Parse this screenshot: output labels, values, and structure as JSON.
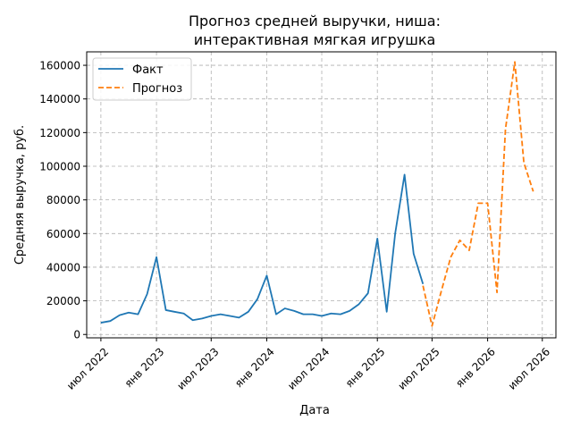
{
  "chart_data": {
    "type": "line",
    "title_lines": [
      "Прогноз средней выручки, ниша:",
      "интерактивная мягкая игрушка"
    ],
    "xlabel": "Дата",
    "ylabel": "Средняя выручка, руб.",
    "xlim": [
      "2022-05-15",
      "2026-08-15"
    ],
    "ylim": [
      -2000,
      168000
    ],
    "x_ticks": [
      {
        "date": "2022-07-01",
        "label": "июл 2022"
      },
      {
        "date": "2023-01-01",
        "label": "янв 2023"
      },
      {
        "date": "2023-07-01",
        "label": "июл 2023"
      },
      {
        "date": "2024-01-01",
        "label": "янв 2024"
      },
      {
        "date": "2024-07-01",
        "label": "июл 2024"
      },
      {
        "date": "2025-01-01",
        "label": "янв 2025"
      },
      {
        "date": "2025-07-01",
        "label": "июл 2025"
      },
      {
        "date": "2026-01-01",
        "label": "янв 2026"
      },
      {
        "date": "2026-07-01",
        "label": "июл 2026"
      }
    ],
    "y_ticks": [
      0,
      20000,
      40000,
      60000,
      80000,
      100000,
      120000,
      140000,
      160000
    ],
    "grid": true,
    "legend_position": "top-left",
    "series": [
      {
        "name": "Факт",
        "color": "#1f77b4",
        "style": "solid",
        "points": [
          {
            "x": "2022-07-01",
            "y": 7000
          },
          {
            "x": "2022-08-01",
            "y": 8000
          },
          {
            "x": "2022-09-01",
            "y": 11500
          },
          {
            "x": "2022-10-01",
            "y": 13000
          },
          {
            "x": "2022-11-01",
            "y": 12000
          },
          {
            "x": "2022-12-01",
            "y": 24000
          },
          {
            "x": "2023-01-01",
            "y": 46000
          },
          {
            "x": "2023-02-01",
            "y": 14500
          },
          {
            "x": "2023-03-01",
            "y": 13500
          },
          {
            "x": "2023-04-01",
            "y": 12500
          },
          {
            "x": "2023-05-01",
            "y": 8500
          },
          {
            "x": "2023-06-01",
            "y": 9500
          },
          {
            "x": "2023-07-01",
            "y": 11000
          },
          {
            "x": "2023-08-01",
            "y": 12000
          },
          {
            "x": "2023-09-01",
            "y": 11000
          },
          {
            "x": "2023-10-01",
            "y": 10000
          },
          {
            "x": "2023-11-01",
            "y": 13500
          },
          {
            "x": "2023-12-01",
            "y": 21000
          },
          {
            "x": "2024-01-01",
            "y": 35000
          },
          {
            "x": "2024-02-01",
            "y": 12000
          },
          {
            "x": "2024-03-01",
            "y": 15500
          },
          {
            "x": "2024-04-01",
            "y": 14000
          },
          {
            "x": "2024-05-01",
            "y": 12000
          },
          {
            "x": "2024-06-01",
            "y": 12000
          },
          {
            "x": "2024-07-01",
            "y": 11000
          },
          {
            "x": "2024-08-01",
            "y": 12500
          },
          {
            "x": "2024-09-01",
            "y": 12000
          },
          {
            "x": "2024-10-01",
            "y": 14000
          },
          {
            "x": "2024-11-01",
            "y": 18000
          },
          {
            "x": "2024-12-01",
            "y": 24500
          },
          {
            "x": "2025-01-01",
            "y": 57000
          },
          {
            "x": "2025-02-01",
            "y": 13500
          },
          {
            "x": "2025-03-01",
            "y": 60000
          },
          {
            "x": "2025-04-01",
            "y": 95000
          },
          {
            "x": "2025-05-01",
            "y": 48000
          },
          {
            "x": "2025-06-01",
            "y": 30000
          }
        ]
      },
      {
        "name": "Прогноз",
        "color": "#ff7f0e",
        "style": "dashed",
        "points": [
          {
            "x": "2025-06-01",
            "y": 29000
          },
          {
            "x": "2025-07-01",
            "y": 5000
          },
          {
            "x": "2025-08-01",
            "y": 26000
          },
          {
            "x": "2025-09-01",
            "y": 46000
          },
          {
            "x": "2025-10-01",
            "y": 56000
          },
          {
            "x": "2025-11-01",
            "y": 50000
          },
          {
            "x": "2025-12-01",
            "y": 78000
          },
          {
            "x": "2026-01-01",
            "y": 78000
          },
          {
            "x": "2026-02-01",
            "y": 25000
          },
          {
            "x": "2026-03-01",
            "y": 122000
          },
          {
            "x": "2026-04-01",
            "y": 162000
          },
          {
            "x": "2026-05-01",
            "y": 102000
          },
          {
            "x": "2026-06-01",
            "y": 85000
          }
        ]
      }
    ]
  }
}
